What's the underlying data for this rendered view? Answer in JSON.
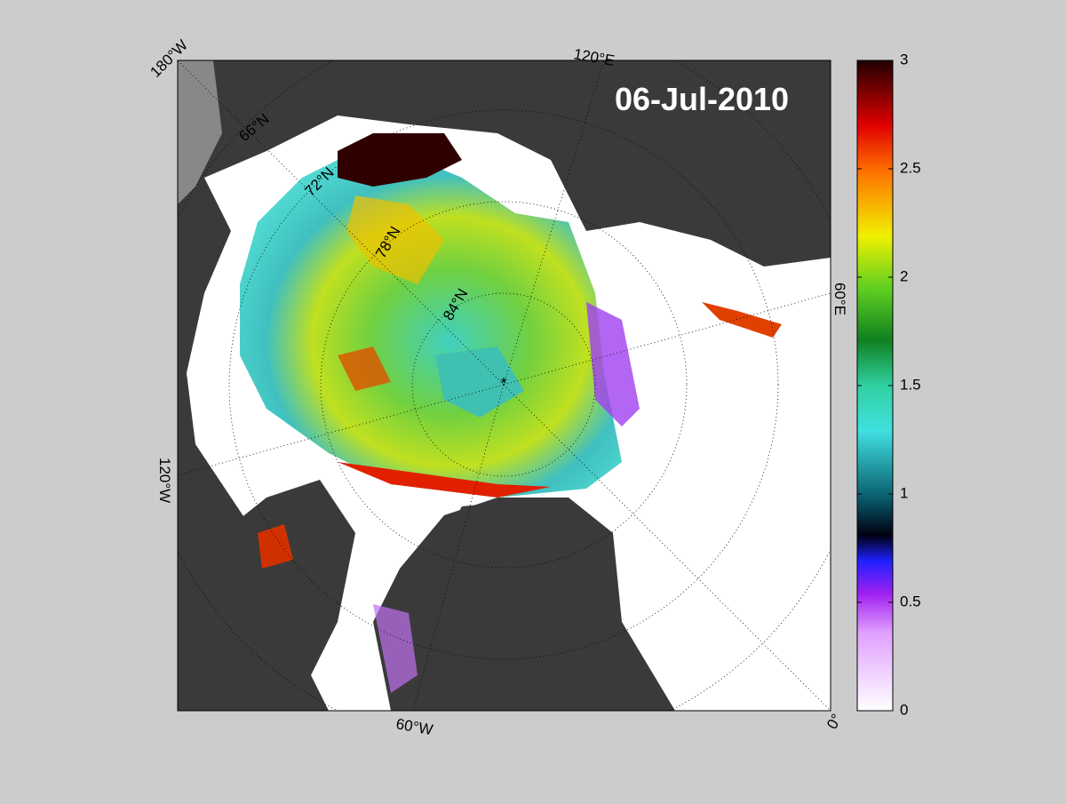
{
  "map": {
    "title": "06-Jul-2010",
    "longitude_labels": [
      "180°W",
      "120°E",
      "60°E",
      "0°",
      "60°W",
      "120°W"
    ],
    "latitude_labels": [
      "66°N",
      "72°N",
      "78°N",
      "84°N"
    ],
    "colorbar": {
      "lim": [
        0,
        3
      ],
      "ticks": [
        0,
        0.5,
        1,
        1.5,
        2,
        2.5,
        3
      ]
    }
  }
}
